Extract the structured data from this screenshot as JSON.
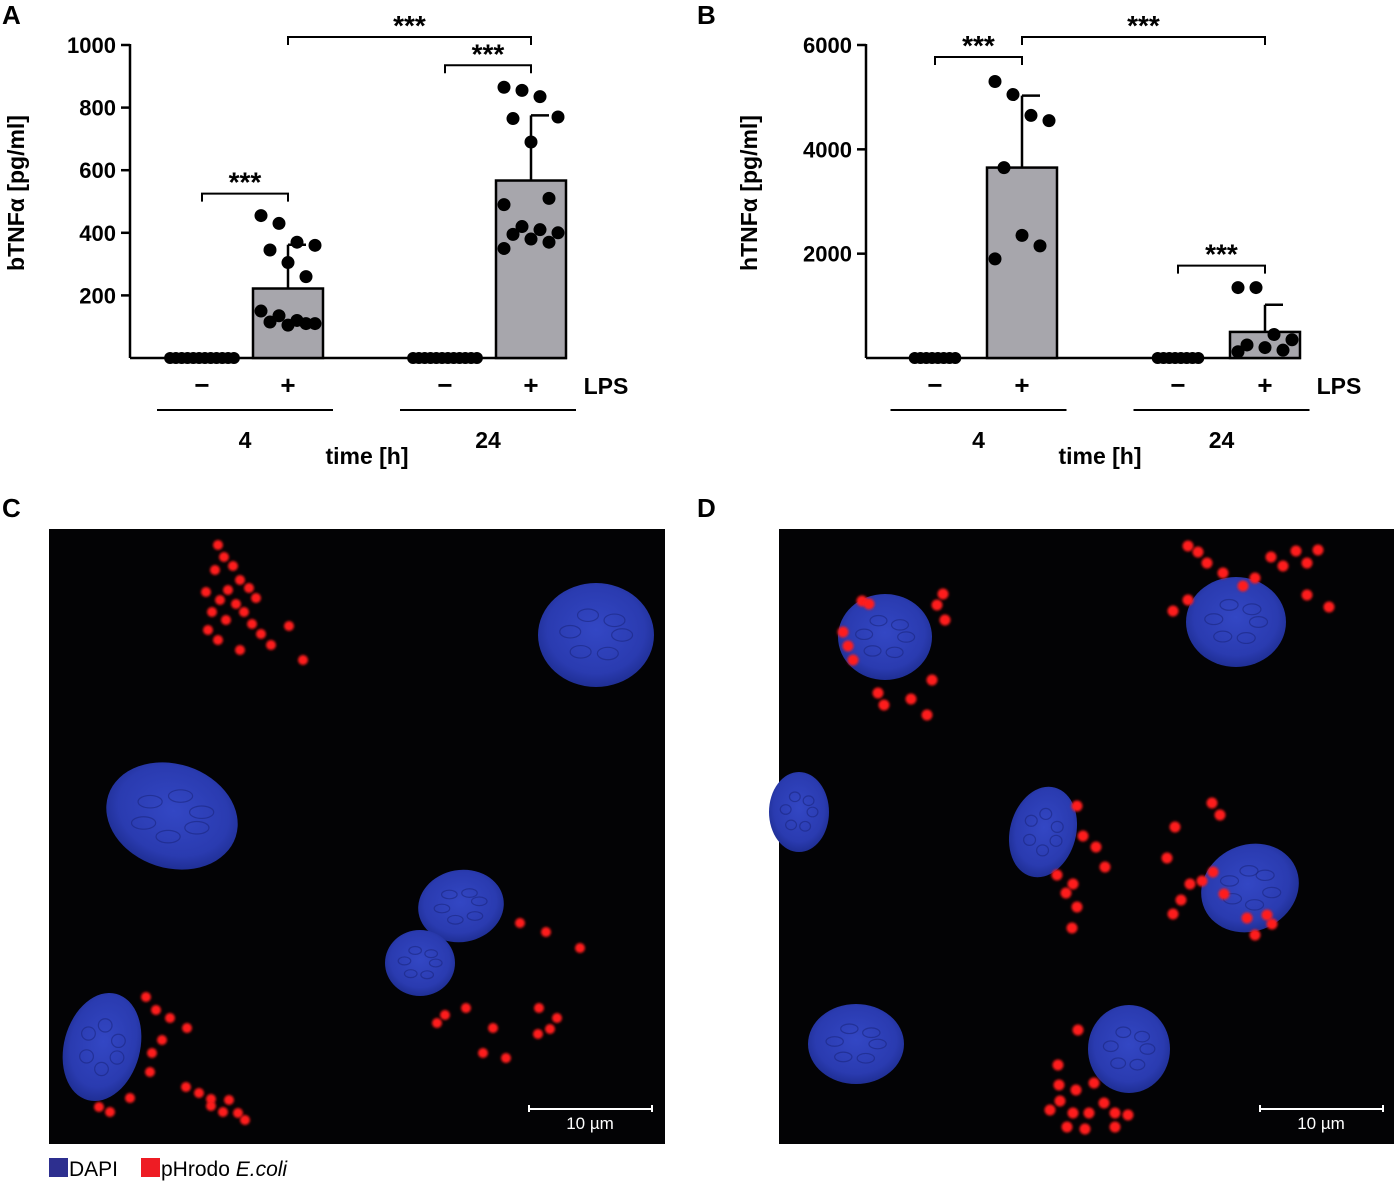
{
  "panels": {
    "a": {
      "letter": "A"
    },
    "b": {
      "letter": "B"
    },
    "c": {
      "letter": "C",
      "scalebar": "10 µm"
    },
    "d": {
      "letter": "D",
      "scalebar": "10 µm"
    }
  },
  "chart_data": [
    {
      "type": "bar",
      "panel": "A",
      "ylabel": "bTNFα [pg/ml]",
      "ylim": [
        0,
        1000
      ],
      "yticks": [
        200,
        400,
        600,
        800,
        1000
      ],
      "xlabel": "time [h]",
      "treatment_label": "LPS",
      "groups": [
        {
          "time": "4",
          "bars": [
            {
              "lps": "−",
              "mean": 0,
              "sd": 0,
              "points": [
                0,
                0,
                0,
                0,
                0,
                0,
                0,
                0,
                0,
                0,
                0,
                0
              ]
            },
            {
              "lps": "+",
              "mean": 222,
              "sd": 140,
              "points": [
                455,
                430,
                370,
                360,
                345,
                305,
                260,
                150,
                135,
                120,
                110,
                115,
                105,
                110
              ]
            }
          ]
        },
        {
          "time": "24",
          "bars": [
            {
              "lps": "−",
              "mean": 0,
              "sd": 0,
              "points": [
                0,
                0,
                0,
                0,
                0,
                0,
                0,
                0,
                0,
                0,
                0,
                0
              ]
            },
            {
              "lps": "+",
              "mean": 567,
              "sd": 208,
              "points": [
                865,
                855,
                835,
                770,
                765,
                690,
                510,
                490,
                420,
                410,
                400,
                395,
                380,
                370,
                350
              ]
            }
          ]
        }
      ],
      "significance": [
        {
          "label": "***",
          "from": "4 −",
          "to": "4 +"
        },
        {
          "label": "***",
          "from": "24 −",
          "to": "24 +"
        },
        {
          "label": "***",
          "from": "4 +",
          "to": "24 +"
        }
      ]
    },
    {
      "type": "bar",
      "panel": "B",
      "ylabel": "hTNFα [pg/ml]",
      "ylim": [
        0,
        6000
      ],
      "yticks": [
        2000,
        4000,
        6000
      ],
      "xlabel": "time [h]",
      "treatment_label": "LPS",
      "groups": [
        {
          "time": "4",
          "bars": [
            {
              "lps": "−",
              "mean": 0,
              "sd": 0,
              "points": [
                0,
                0,
                0,
                0,
                0,
                0,
                0,
                0
              ]
            },
            {
              "lps": "+",
              "mean": 3650,
              "sd": 1380,
              "points": [
                5300,
                5050,
                4650,
                4550,
                3650,
                2350,
                2150,
                1900
              ]
            }
          ]
        },
        {
          "time": "24",
          "bars": [
            {
              "lps": "−",
              "mean": 0,
              "sd": 0,
              "points": [
                0,
                0,
                0,
                0,
                0,
                0,
                0,
                0
              ]
            },
            {
              "lps": "+",
              "mean": 500,
              "sd": 520,
              "points": [
                1350,
                1350,
                450,
                350,
                250,
                200,
                150,
                120
              ]
            }
          ]
        }
      ],
      "significance": [
        {
          "label": "***",
          "from": "4 −",
          "to": "4 +"
        },
        {
          "label": "***",
          "from": "24 −",
          "to": "24 +"
        },
        {
          "label": "***",
          "from": "4 +",
          "to": "24 +"
        }
      ]
    }
  ],
  "legend": {
    "items": [
      {
        "label": "DAPI",
        "color": "#2d2f8f"
      },
      {
        "label": "pHrodo",
        "italic": "E.coli",
        "color": "#ee1c24"
      }
    ]
  },
  "colors": {
    "bar_fill": "#a7a6ac",
    "nucleus": "#2b3ec1",
    "bacteria": "#ff1a1a",
    "micrograph_bg": "#030305"
  }
}
